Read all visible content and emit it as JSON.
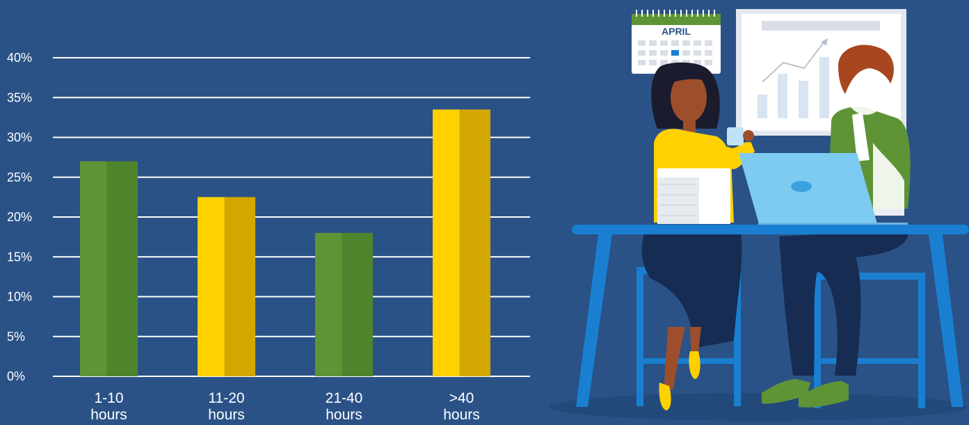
{
  "chart_data": {
    "type": "bar",
    "categories": [
      [
        "1-10",
        "hours"
      ],
      [
        "11-20",
        "hours"
      ],
      [
        "21-40",
        "hours"
      ],
      [
        ">40",
        "hours"
      ]
    ],
    "values": [
      27,
      22.5,
      18,
      33.5
    ],
    "ylim": [
      0,
      40
    ],
    "yticks": [
      "0%",
      "5%",
      "10%",
      "15%",
      "20%",
      "25%",
      "30%",
      "35%",
      "40%"
    ],
    "grid": true,
    "bar_colors": [
      {
        "light": "#5e9436",
        "dark": "#4e852c"
      },
      {
        "light": "#ffd100",
        "dark": "#d2a800"
      },
      {
        "light": "#5e9436",
        "dark": "#4e852c"
      },
      {
        "light": "#ffd100",
        "dark": "#d2a800"
      }
    ]
  },
  "illustration": {
    "calendar_month": "APRIL",
    "colors": {
      "background": "#2a5287",
      "table": "#1a7fd0",
      "laptop": "#7ecbf2",
      "shirt_yellow": "#ffd100",
      "shirt_green": "#5e9436",
      "trousers": "#162c52"
    }
  }
}
